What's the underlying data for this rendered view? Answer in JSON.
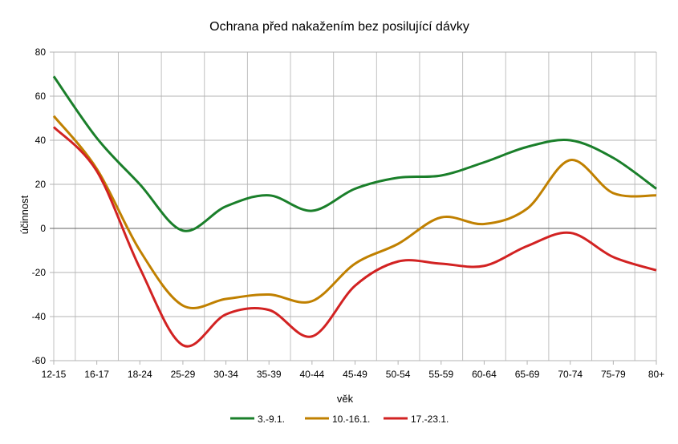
{
  "chart_data": {
    "type": "line",
    "title": "Ochrana před nakažením bez posilující dávky",
    "xlabel": "věk",
    "ylabel": "účinnost",
    "ylim": [
      -60,
      80
    ],
    "yticks": [
      80,
      60,
      40,
      20,
      0,
      -20,
      -40,
      -60
    ],
    "grid": true,
    "legend_position": "bottom",
    "categories": [
      "12-15",
      "16-17",
      "18-24",
      "25-29",
      "30-34",
      "35-39",
      "40-44",
      "45-49",
      "50-54",
      "55-59",
      "60-64",
      "65-69",
      "70-74",
      "75-79",
      "80+"
    ],
    "series": [
      {
        "name": "3.-9.1.",
        "color": "#1a7f2a",
        "values": [
          69,
          41,
          20,
          -1,
          10,
          15,
          8,
          18,
          23,
          24,
          30,
          37,
          40,
          32,
          18
        ]
      },
      {
        "name": "10.-16.1.",
        "color": "#c08000",
        "values": [
          51,
          27,
          -10,
          -35,
          -32,
          -30,
          -33,
          -16,
          -7,
          5,
          2,
          9,
          31,
          16,
          15
        ]
      },
      {
        "name": "17.-23.1.",
        "color": "#d22222",
        "values": [
          46,
          26,
          -18,
          -53,
          -39,
          -37,
          -49,
          -26,
          -15,
          -16,
          -17,
          -8,
          -2,
          -13,
          -19
        ]
      }
    ]
  }
}
